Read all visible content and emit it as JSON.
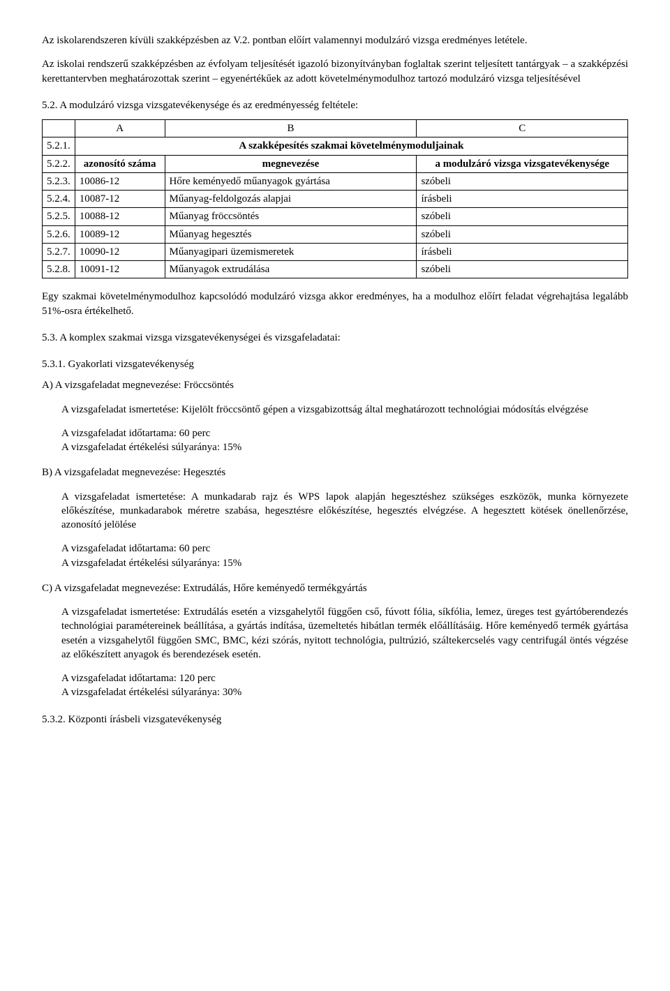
{
  "intro": {
    "p1": "Az iskolarendszeren kívüli szakképzésben az V.2. pontban előírt valamennyi modulzáró vizsga eredményes letétele.",
    "p2": "Az iskolai rendszerű szakképzésben az évfolyam teljesítését igazoló bizonyítványban foglaltak szerint teljesített tantárgyak – a szakképzési kerettantervben meghatározottak szerint – egyenértékűek az adott követelménymodulhoz tartozó modulzáró vizsga teljesítésével"
  },
  "sec52": {
    "title": "5.2. A modulzáró vizsga vizsgatevékenysége és az eredményesség feltétele:",
    "table": {
      "head": {
        "A": "A",
        "B": "B",
        "C": "C"
      },
      "r1": {
        "num": "5.2.1.",
        "span": "A szakképesítés szakmai követelménymoduljainak"
      },
      "r2": {
        "num": "5.2.2.",
        "a": "azonosító száma",
        "b": "megnevezése",
        "c": "a modulzáró vizsga vizsgatevékenysége"
      },
      "rows": [
        {
          "num": "5.2.3.",
          "a": "10086-12",
          "b": "Hőre keményedő műanyagok gyártása",
          "c": "szóbeli"
        },
        {
          "num": "5.2.4.",
          "a": "10087-12",
          "b": "Műanyag-feldolgozás alapjai",
          "c": "írásbeli"
        },
        {
          "num": "5.2.5.",
          "a": "10088-12",
          "b": "Műanyag fröccsöntés",
          "c": "szóbeli"
        },
        {
          "num": "5.2.6.",
          "a": "10089-12",
          "b": "Műanyag hegesztés",
          "c": "szóbeli"
        },
        {
          "num": "5.2.7.",
          "a": "10090-12",
          "b": "Műanyagipari üzemismeretek",
          "c": "írásbeli"
        },
        {
          "num": "5.2.8.",
          "a": "10091-12",
          "b": "Műanyagok extrudálása",
          "c": "szóbeli"
        }
      ]
    },
    "after": "Egy szakmai követelménymodulhoz kapcsolódó modulzáró vizsga akkor eredményes, ha a modulhoz előírt feladat végrehajtása legalább 51%-osra értékelhető."
  },
  "sec53": {
    "title": "5.3. A komplex szakmai vizsga vizsgatevékenységei és vizsgafeladatai:",
    "sec531": {
      "title": "5.3.1. Gyakorlati vizsgatevékenység",
      "A": {
        "head": "A) A vizsgafeladat megnevezése: Fröccsöntés",
        "desc": "A vizsgafeladat ismertetése: Kijelölt fröccsöntő gépen a vizsgabizottság által meghatározott technológiai módosítás elvégzése",
        "dur": "A vizsgafeladat időtartama: 60 perc",
        "weight": "A vizsgafeladat értékelési súlyaránya: 15%"
      },
      "B": {
        "head": "B) A vizsgafeladat megnevezése: Hegesztés",
        "desc": "A vizsgafeladat ismertetése: A munkadarab rajz és WPS lapok alapján hegesztéshez szükséges eszközök, munka környezete előkészítése, munkadarabok méretre szabása, hegesztésre előkészítése, hegesztés elvégzése. A hegesztett kötések önellenőrzése, azonosító jelölése",
        "dur": "A vizsgafeladat időtartama: 60 perc",
        "weight": "A vizsgafeladat értékelési súlyaránya: 15%"
      },
      "C": {
        "head": "C) A vizsgafeladat megnevezése: Extrudálás, Hőre keményedő termékgyártás",
        "desc": "A vizsgafeladat ismertetése: Extrudálás esetén a vizsgahelytől függően cső, fúvott fólia, síkfólia, lemez, üreges test gyártóberendezés technológiai paramétereinek beállítása, a gyártás indítása, üzemeltetés hibátlan termék előállításáig. Hőre keményedő termék gyártása esetén a vizsgahelytől függően SMC, BMC, kézi szórás, nyitott technológia, pultrúzió, száltekercselés vagy centrifugál öntés végzése az előkészített anyagok és berendezések esetén.",
        "dur": "A vizsgafeladat időtartama: 120 perc",
        "weight": "A vizsgafeladat értékelési súlyaránya: 30%"
      }
    },
    "sec532": {
      "title": "5.3.2. Központi írásbeli vizsgatevékenység"
    }
  }
}
